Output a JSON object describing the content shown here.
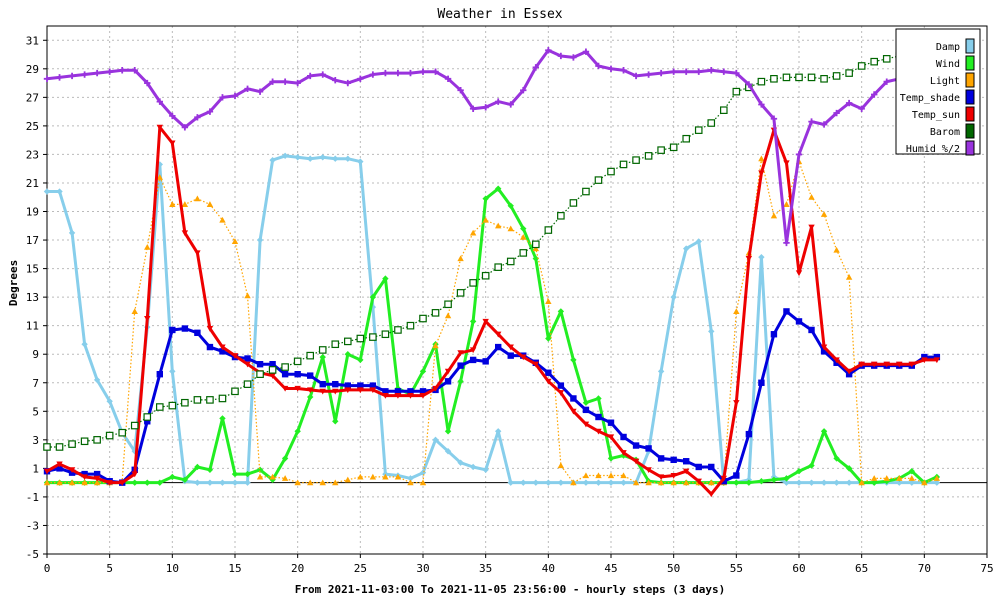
{
  "chart_data": {
    "type": "line",
    "title": "Weather in Essex",
    "xlabel": "From 2021-11-03:00 To 2021-11-05 23:56:00 - hourly steps (3 days)",
    "ylabel": "Degrees",
    "xlim": [
      0,
      75
    ],
    "ylim": [
      -5,
      32
    ],
    "x_ticks": [
      0,
      5,
      10,
      15,
      20,
      25,
      30,
      35,
      40,
      45,
      50,
      55,
      60,
      65,
      70,
      75
    ],
    "y_ticks": [
      -5,
      -3,
      -1,
      1,
      3,
      5,
      7,
      9,
      11,
      13,
      15,
      17,
      19,
      21,
      23,
      25,
      27,
      29,
      31
    ],
    "grid": true,
    "legend_position": "top-right",
    "series": [
      {
        "name": "Damp",
        "color": "#87ceeb",
        "marker": "diamond",
        "line": "solid",
        "x": [
          0,
          1,
          2,
          3,
          4,
          5,
          6,
          7,
          8,
          9,
          10,
          11,
          12,
          13,
          14,
          15,
          16,
          17,
          18,
          19,
          20,
          21,
          22,
          23,
          24,
          25,
          26,
          27,
          28,
          29,
          30,
          31,
          32,
          33,
          34,
          35,
          36,
          37,
          38,
          39,
          40,
          41,
          42,
          43,
          44,
          45,
          46,
          47,
          48,
          49,
          50,
          51,
          52,
          53,
          54,
          55,
          56,
          57,
          58,
          59,
          60,
          61,
          62,
          63,
          64,
          65,
          66,
          67,
          68,
          69,
          70,
          71
        ],
        "values": [
          20.4,
          20.4,
          17.5,
          9.7,
          7.2,
          5.7,
          3.5,
          2.2,
          10.9,
          22.3,
          7.8,
          0.1,
          0,
          0,
          0,
          0,
          0,
          17,
          22.6,
          22.9,
          22.8,
          22.7,
          22.8,
          22.7,
          22.7,
          22.5,
          12.3,
          0.6,
          0.5,
          0.3,
          0.7,
          3,
          2.2,
          1.4,
          1.1,
          0.9,
          3.6,
          0,
          0,
          0,
          0,
          0,
          0,
          0,
          0,
          0,
          0,
          0,
          2.2,
          7.8,
          13,
          16.4,
          16.9,
          10.6,
          0,
          0,
          0.2,
          15.8,
          0.4,
          0,
          0,
          0,
          0,
          0,
          0,
          0,
          0,
          0,
          0,
          0,
          0,
          0
        ]
      },
      {
        "name": "Wind",
        "color": "#22ee22",
        "marker": "diamond",
        "line": "solid",
        "x": [
          0,
          1,
          2,
          3,
          4,
          5,
          6,
          7,
          8,
          9,
          10,
          11,
          12,
          13,
          14,
          15,
          16,
          17,
          18,
          19,
          20,
          21,
          22,
          23,
          24,
          25,
          26,
          27,
          28,
          29,
          30,
          31,
          32,
          33,
          34,
          35,
          36,
          37,
          38,
          39,
          40,
          41,
          42,
          43,
          44,
          45,
          46,
          47,
          48,
          49,
          50,
          51,
          52,
          53,
          54,
          55,
          56,
          57,
          58,
          59,
          60,
          61,
          62,
          63,
          64,
          65,
          66,
          67,
          68,
          69,
          70,
          71
        ],
        "values": [
          0,
          0,
          0,
          0,
          0,
          0,
          0,
          0,
          0,
          0,
          0.4,
          0.2,
          1.1,
          0.9,
          4.5,
          0.6,
          0.6,
          0.9,
          0.2,
          1.7,
          3.6,
          6,
          8.8,
          4.3,
          9,
          8.6,
          13,
          14.3,
          6.6,
          6.2,
          7.8,
          9.7,
          3.6,
          7.1,
          11.3,
          19.9,
          20.6,
          19.4,
          17.8,
          15.7,
          10.1,
          12,
          8.6,
          5.6,
          5.9,
          1.7,
          1.9,
          1.6,
          0.1,
          0,
          0,
          0,
          0,
          0,
          0,
          0,
          0,
          0.1,
          0.2,
          0.3,
          0.8,
          1.2,
          3.6,
          1.7,
          1,
          0,
          0,
          0.1,
          0.3,
          0.8,
          0,
          0.4
        ]
      },
      {
        "name": "Light",
        "color": "#ffa500",
        "marker": "triangle",
        "line": "dotted",
        "x": [
          0,
          1,
          2,
          3,
          4,
          5,
          6,
          7,
          8,
          9,
          10,
          11,
          12,
          13,
          14,
          15,
          16,
          17,
          18,
          19,
          20,
          21,
          22,
          23,
          24,
          25,
          26,
          27,
          28,
          29,
          30,
          31,
          32,
          33,
          34,
          35,
          36,
          37,
          38,
          39,
          40,
          41,
          42,
          43,
          44,
          45,
          46,
          47,
          48,
          49,
          50,
          51,
          52,
          53,
          54,
          55,
          56,
          57,
          58,
          59,
          60,
          61,
          62,
          63,
          64,
          65,
          66,
          67,
          68,
          69,
          70,
          71
        ],
        "values": [
          0,
          0,
          0,
          0,
          0,
          0,
          0.1,
          12,
          16.5,
          21.4,
          19.5,
          19.5,
          19.9,
          19.5,
          18.4,
          16.9,
          13.1,
          0.4,
          0.4,
          0.3,
          0,
          0,
          0,
          0,
          0.2,
          0.4,
          0.4,
          0.4,
          0.4,
          0,
          0,
          9.6,
          11.7,
          15.7,
          17.5,
          18.4,
          18,
          17.8,
          17.2,
          16.4,
          12.7,
          1.2,
          0,
          0.5,
          0.5,
          0.5,
          0.5,
          0,
          0,
          0,
          0,
          0,
          0,
          0,
          0,
          12,
          16.1,
          22.7,
          18.7,
          19.5,
          22.5,
          20,
          18.8,
          16.3,
          14.4,
          0,
          0.3,
          0.3,
          0.3,
          0.3,
          0,
          0.3
        ]
      },
      {
        "name": "Temp_shade",
        "color": "#0000dd",
        "marker": "square",
        "line": "solid",
        "x": [
          0,
          1,
          2,
          3,
          4,
          5,
          6,
          7,
          8,
          9,
          10,
          11,
          12,
          13,
          14,
          15,
          16,
          17,
          18,
          19,
          20,
          21,
          22,
          23,
          24,
          25,
          26,
          27,
          28,
          29,
          30,
          31,
          32,
          33,
          34,
          35,
          36,
          37,
          38,
          39,
          40,
          41,
          42,
          43,
          44,
          45,
          46,
          47,
          48,
          49,
          50,
          51,
          52,
          53,
          54,
          55,
          56,
          57,
          58,
          59,
          60,
          61,
          62,
          63,
          64,
          65,
          66,
          67,
          68,
          69,
          70,
          71
        ],
        "values": [
          0.8,
          1,
          0.7,
          0.6,
          0.6,
          0.1,
          0,
          0.9,
          4.3,
          7.6,
          10.7,
          10.8,
          10.5,
          9.5,
          9.2,
          8.8,
          8.7,
          8.3,
          8.3,
          7.6,
          7.6,
          7.5,
          6.9,
          6.9,
          6.8,
          6.8,
          6.8,
          6.4,
          6.4,
          6.4,
          6.4,
          6.5,
          7.1,
          8.2,
          8.6,
          8.5,
          9.5,
          8.9,
          8.9,
          8.4,
          7.7,
          6.8,
          5.9,
          5.1,
          4.6,
          4.2,
          3.2,
          2.6,
          2.4,
          1.7,
          1.6,
          1.5,
          1.1,
          1.1,
          0.1,
          0.5,
          3.4,
          7,
          10.4,
          12,
          11.3,
          10.7,
          9.2,
          8.4,
          7.6,
          8.2,
          8.2,
          8.2,
          8.2,
          8.2,
          8.8,
          8.8
        ]
      },
      {
        "name": "Temp_sun",
        "color": "#ee0000",
        "marker": "triangle-down",
        "line": "solid",
        "x": [
          0,
          1,
          2,
          3,
          4,
          5,
          6,
          7,
          8,
          9,
          10,
          11,
          12,
          13,
          14,
          15,
          16,
          17,
          18,
          19,
          20,
          21,
          22,
          23,
          24,
          25,
          26,
          27,
          28,
          29,
          30,
          31,
          32,
          33,
          34,
          35,
          36,
          37,
          38,
          39,
          40,
          41,
          42,
          43,
          44,
          45,
          46,
          47,
          48,
          49,
          50,
          51,
          52,
          53,
          54,
          55,
          56,
          57,
          58,
          59,
          60,
          61,
          62,
          63,
          64,
          65,
          66,
          67,
          68,
          69,
          70,
          71
        ],
        "values": [
          0.8,
          1.3,
          0.9,
          0.4,
          0.3,
          0,
          0,
          0.6,
          11.5,
          24.9,
          23.8,
          17.5,
          16.1,
          10.8,
          9.5,
          8.9,
          8.3,
          7.7,
          7.5,
          6.6,
          6.6,
          6.5,
          6.4,
          6.4,
          6.5,
          6.5,
          6.5,
          6.1,
          6.1,
          6.1,
          6.1,
          6.6,
          7.8,
          9.1,
          9.3,
          11.3,
          10.4,
          9.5,
          8.8,
          8.3,
          7.1,
          6.3,
          5,
          4.1,
          3.6,
          3.2,
          2.1,
          1.5,
          0.9,
          0.4,
          0.5,
          0.8,
          0.1,
          -0.8,
          0.3,
          5.6,
          15.7,
          21.7,
          24.7,
          22.4,
          14.7,
          17.9,
          9.5,
          8.6,
          7.8,
          8.3,
          8.3,
          8.3,
          8.3,
          8.3,
          8.6,
          8.6
        ]
      },
      {
        "name": "Barom",
        "color": "#006600",
        "marker": "square-open",
        "line": "dotted",
        "x": [
          0,
          1,
          2,
          3,
          4,
          5,
          6,
          7,
          8,
          9,
          10,
          11,
          12,
          13,
          14,
          15,
          16,
          17,
          18,
          19,
          20,
          21,
          22,
          23,
          24,
          25,
          26,
          27,
          28,
          29,
          30,
          31,
          32,
          33,
          34,
          35,
          36,
          37,
          38,
          39,
          40,
          41,
          42,
          43,
          44,
          45,
          46,
          47,
          48,
          49,
          50,
          51,
          52,
          53,
          54,
          55,
          56,
          57,
          58,
          59,
          60,
          61,
          62,
          63,
          64,
          65,
          66,
          67,
          68,
          69,
          70,
          71
        ],
        "values": [
          2.5,
          2.5,
          2.7,
          2.9,
          3,
          3.3,
          3.5,
          4,
          4.6,
          5.3,
          5.4,
          5.6,
          5.8,
          5.8,
          5.9,
          6.4,
          6.9,
          7.6,
          7.9,
          8.1,
          8.5,
          8.9,
          9.3,
          9.7,
          9.9,
          10.1,
          10.2,
          10.4,
          10.7,
          11,
          11.5,
          11.9,
          12.5,
          13.3,
          14,
          14.5,
          15.1,
          15.5,
          16.1,
          16.7,
          17.7,
          18.7,
          19.6,
          20.4,
          21.2,
          21.8,
          22.3,
          22.6,
          22.9,
          23.3,
          23.5,
          24.1,
          24.7,
          25.2,
          26.1,
          27.4,
          27.7,
          28.1,
          28.3,
          28.4,
          28.4,
          28.4,
          28.3,
          28.5,
          28.7,
          29.2,
          29.5,
          29.7,
          29.9,
          30.1,
          30.3,
          30.2
        ]
      },
      {
        "name": "Humid_%/2",
        "color": "#9933dd",
        "marker": "plus",
        "line": "solid",
        "x": [
          0,
          1,
          2,
          3,
          4,
          5,
          6,
          7,
          8,
          9,
          10,
          11,
          12,
          13,
          14,
          15,
          16,
          17,
          18,
          19,
          20,
          21,
          22,
          23,
          24,
          25,
          26,
          27,
          28,
          29,
          30,
          31,
          32,
          33,
          34,
          35,
          36,
          37,
          38,
          39,
          40,
          41,
          42,
          43,
          44,
          45,
          46,
          47,
          48,
          49,
          50,
          51,
          52,
          53,
          54,
          55,
          56,
          57,
          58,
          59,
          60,
          61,
          62,
          63,
          64,
          65,
          66,
          67,
          68,
          69,
          70,
          71
        ],
        "values": [
          28.3,
          28.4,
          28.5,
          28.6,
          28.7,
          28.8,
          28.9,
          28.9,
          28,
          26.7,
          25.7,
          24.9,
          25.6,
          26,
          27,
          27.1,
          27.6,
          27.4,
          28.1,
          28.1,
          28,
          28.5,
          28.6,
          28.2,
          28,
          28.3,
          28.6,
          28.7,
          28.7,
          28.7,
          28.8,
          28.8,
          28.3,
          27.5,
          26.2,
          26.3,
          26.7,
          26.5,
          27.5,
          29.1,
          30.3,
          29.9,
          29.8,
          30.2,
          29.2,
          29,
          28.9,
          28.5,
          28.6,
          28.7,
          28.8,
          28.8,
          28.8,
          28.9,
          28.8,
          28.7,
          27.9,
          26.5,
          25.5,
          16.8,
          23,
          25.3,
          25.1,
          25.9,
          26.6,
          26.2,
          27.2,
          28.1,
          28.3,
          28.8,
          28.9,
          30.5
        ]
      }
    ]
  }
}
